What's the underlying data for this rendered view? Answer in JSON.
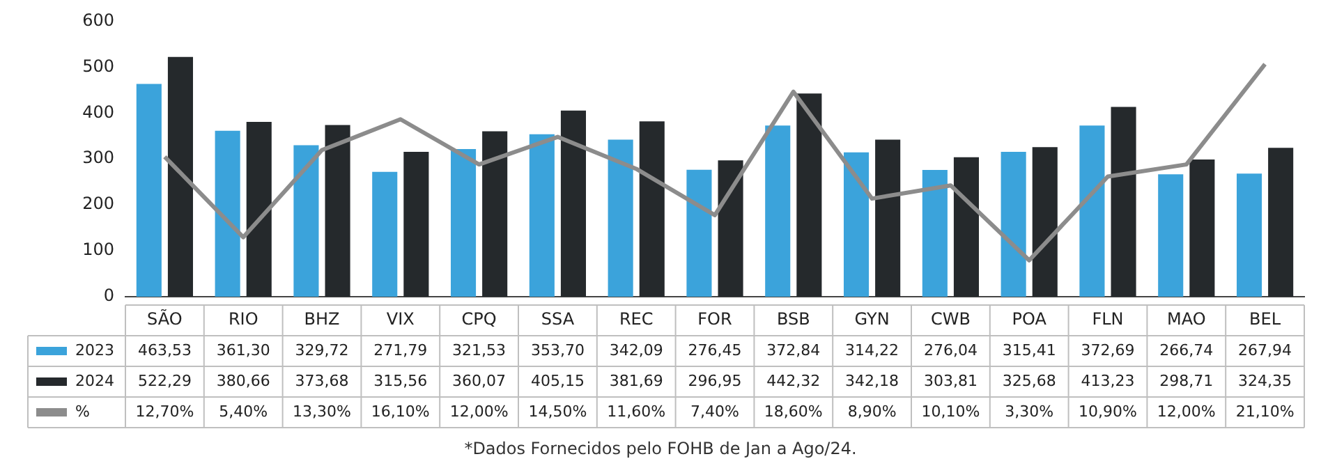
{
  "chart_data": {
    "type": "bar",
    "categories": [
      "SÃO",
      "RIO",
      "BHZ",
      "VIX",
      "CPQ",
      "SSA",
      "REC",
      "FOR",
      "BSB",
      "GYN",
      "CWB",
      "POA",
      "FLN",
      "MAO",
      "BEL"
    ],
    "series": [
      {
        "name": "2023",
        "color": "#3ba3db",
        "values": [
          463.53,
          361.3,
          329.72,
          271.79,
          321.53,
          353.7,
          342.09,
          276.45,
          372.84,
          314.22,
          276.04,
          315.41,
          372.69,
          266.74,
          267.94
        ],
        "value_labels": [
          "463,53",
          "361,30",
          "329,72",
          "271,79",
          "321,53",
          "353,70",
          "342,09",
          "276,45",
          "372,84",
          "314,22",
          "276,04",
          "315,41",
          "372,69",
          "266,74",
          "267,94"
        ]
      },
      {
        "name": "2024",
        "color": "#25292c",
        "values": [
          522.29,
          380.66,
          373.68,
          315.56,
          360.07,
          405.15,
          381.69,
          296.95,
          442.32,
          342.18,
          303.81,
          325.68,
          413.23,
          298.71,
          324.35
        ],
        "value_labels": [
          "522,29",
          "380,66",
          "373,68",
          "315,56",
          "360,07",
          "405,15",
          "381,69",
          "296,95",
          "442,32",
          "342,18",
          "303,81",
          "325,68",
          "413,23",
          "298,71",
          "324,35"
        ]
      },
      {
        "name": "%",
        "color": "#8c8c8c",
        "type": "line",
        "axis": "y2",
        "values": [
          12.7,
          5.4,
          13.3,
          16.1,
          12.0,
          14.5,
          11.6,
          7.4,
          18.6,
          8.9,
          10.1,
          3.3,
          10.9,
          12.0,
          21.1
        ],
        "value_labels": [
          "12,70%",
          "5,40%",
          "13,30%",
          "16,10%",
          "12,00%",
          "14,50%",
          "11,60%",
          "7,40%",
          "18,60%",
          "8,90%",
          "10,10%",
          "3,30%",
          "10,90%",
          "12,00%",
          "21,10%"
        ]
      }
    ],
    "legend": "bottom left",
    "ylim": [
      0,
      600
    ],
    "yticks": [
      0,
      100,
      200,
      300,
      400,
      500,
      600
    ],
    "grid": false,
    "annotations": [
      "*Dados Fornecidos pelo FOHB de Jan a Ago/24."
    ]
  }
}
